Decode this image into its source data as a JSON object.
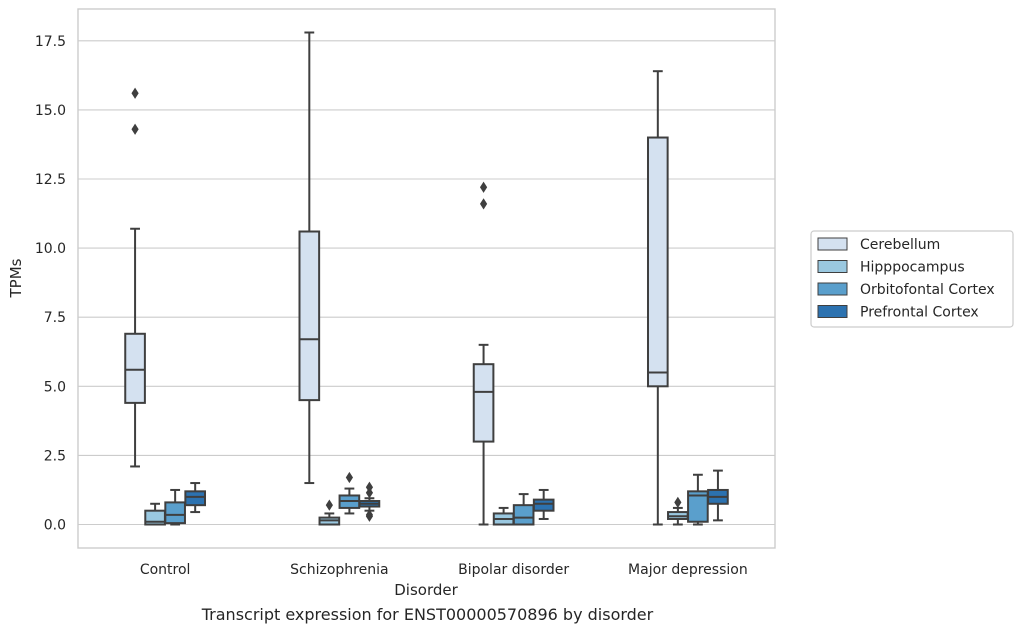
{
  "chart_data": {
    "type": "box",
    "title": "",
    "xlabel": "Disorder",
    "ylabel": "TPMs",
    "ylim": [
      -0.85,
      18.65
    ],
    "yticks": [
      "0.0",
      "2.5",
      "5.0",
      "7.5",
      "10.0",
      "12.5",
      "15.0",
      "17.5"
    ],
    "grid": "horizontal",
    "legend_placement": "right",
    "categories": [
      "Control",
      "Schizophrenia",
      "Bipolar disorder",
      "Major depression"
    ],
    "series": [
      {
        "name": "Cerebellum",
        "color": "#d4e1f0",
        "boxes": [
          {
            "whislo": 2.1,
            "q1": 4.4,
            "med": 5.6,
            "q3": 6.9,
            "whishi": 10.7,
            "fliers": [
              14.3,
              15.6
            ]
          },
          {
            "whislo": 1.5,
            "q1": 4.5,
            "med": 6.7,
            "q3": 10.6,
            "whishi": 17.8,
            "fliers": []
          },
          {
            "whislo": 0.0,
            "q1": 3.0,
            "med": 4.8,
            "q3": 5.8,
            "whishi": 6.5,
            "fliers": [
              11.6,
              12.2
            ]
          },
          {
            "whislo": 0.0,
            "q1": 5.0,
            "med": 5.5,
            "q3": 14.0,
            "whishi": 16.4,
            "fliers": []
          }
        ]
      },
      {
        "name": "Hipppocampus",
        "color": "#9ac8e0",
        "boxes": [
          {
            "whislo": 0.0,
            "q1": 0.0,
            "med": 0.1,
            "q3": 0.5,
            "whishi": 0.75,
            "fliers": []
          },
          {
            "whislo": 0.0,
            "q1": 0.0,
            "med": 0.15,
            "q3": 0.25,
            "whishi": 0.4,
            "fliers": [
              0.7
            ]
          },
          {
            "whislo": 0.0,
            "q1": 0.0,
            "med": 0.2,
            "q3": 0.4,
            "whishi": 0.6,
            "fliers": []
          },
          {
            "whislo": 0.0,
            "q1": 0.2,
            "med": 0.3,
            "q3": 0.45,
            "whishi": 0.6,
            "fliers": [
              0.8
            ]
          }
        ]
      },
      {
        "name": "Orbitofontal Cortex",
        "color": "#5a9fcc",
        "boxes": [
          {
            "whislo": 0.0,
            "q1": 0.05,
            "med": 0.35,
            "q3": 0.8,
            "whishi": 1.25,
            "fliers": []
          },
          {
            "whislo": 0.4,
            "q1": 0.6,
            "med": 0.85,
            "q3": 1.05,
            "whishi": 1.3,
            "fliers": [
              1.7
            ]
          },
          {
            "whislo": 0.0,
            "q1": 0.0,
            "med": 0.25,
            "q3": 0.7,
            "whishi": 1.1,
            "fliers": []
          },
          {
            "whislo": 0.0,
            "q1": 0.1,
            "med": 1.05,
            "q3": 1.2,
            "whishi": 1.8,
            "fliers": []
          }
        ]
      },
      {
        "name": "Prefrontal Cortex",
        "color": "#2c72b0",
        "boxes": [
          {
            "whislo": 0.45,
            "q1": 0.7,
            "med": 1.0,
            "q3": 1.2,
            "whishi": 1.5,
            "fliers": []
          },
          {
            "whislo": 0.5,
            "q1": 0.65,
            "med": 0.75,
            "q3": 0.85,
            "whishi": 0.95,
            "fliers": [
              0.3,
              0.35,
              1.15,
              1.35
            ]
          },
          {
            "whislo": 0.2,
            "q1": 0.5,
            "med": 0.75,
            "q3": 0.9,
            "whishi": 1.25,
            "fliers": []
          },
          {
            "whislo": 0.15,
            "q1": 0.75,
            "med": 1.0,
            "q3": 1.25,
            "whishi": 1.95,
            "fliers": []
          }
        ]
      }
    ]
  },
  "caption": "Transcript expression for ENST00000570896 by disorder"
}
